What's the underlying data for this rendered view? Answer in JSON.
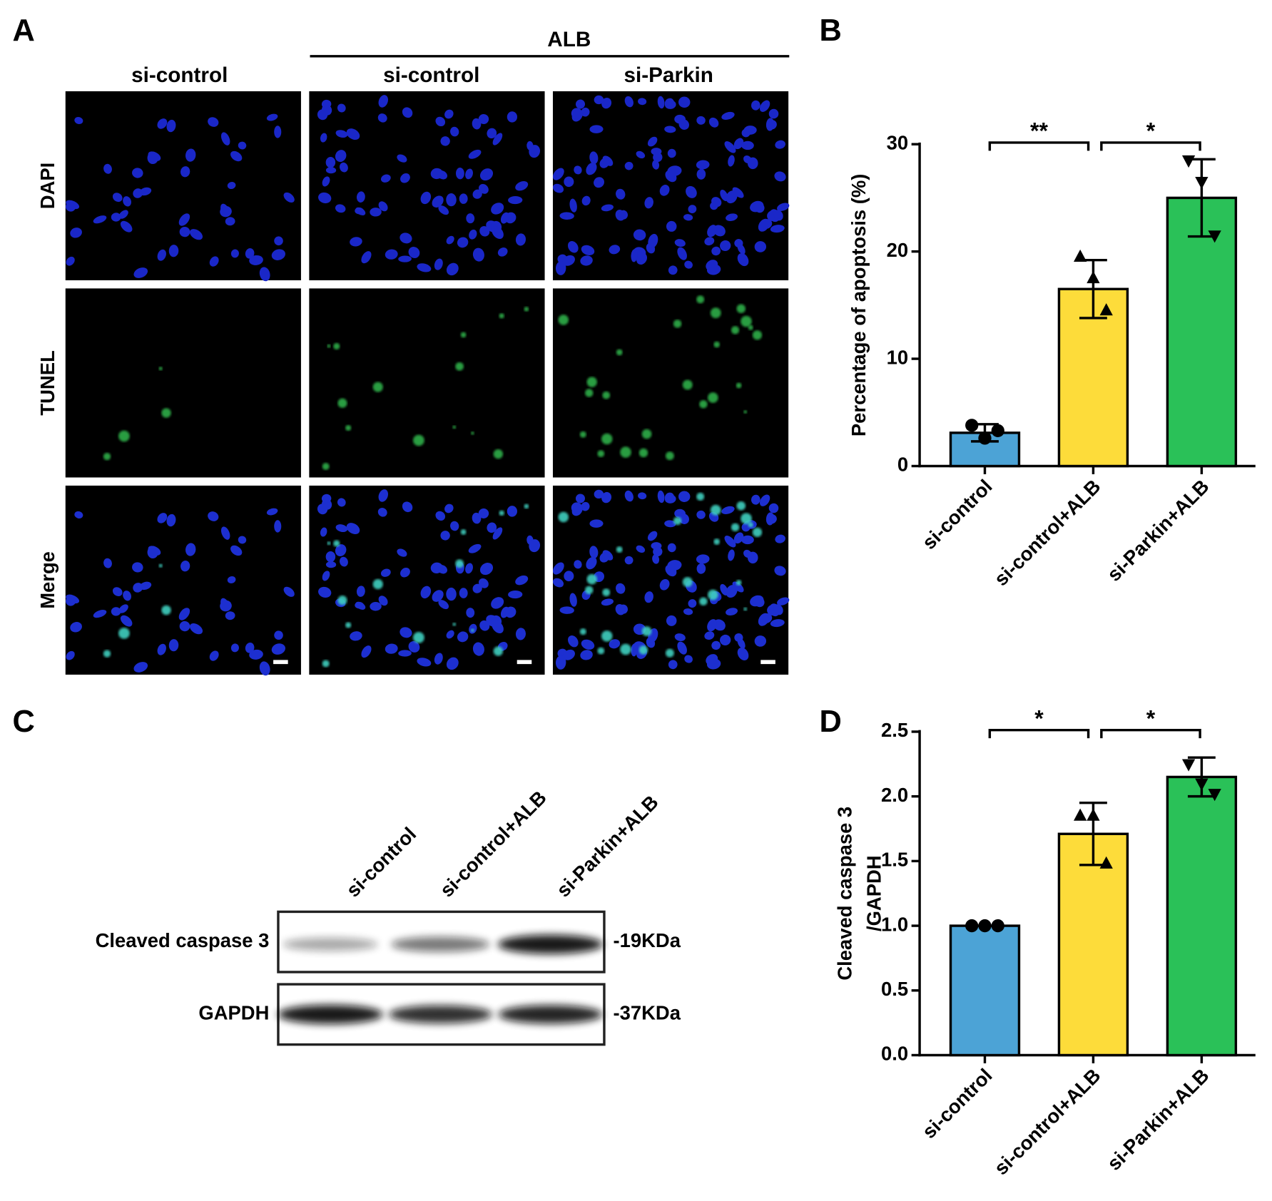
{
  "panel_labels": [
    "A",
    "B",
    "C",
    "D"
  ],
  "panel_a": {
    "group_label": "ALB",
    "columns": [
      "si-control",
      "si-control",
      "si-Parkin"
    ],
    "rows": [
      "DAPI",
      "TUNEL",
      "Merge"
    ]
  },
  "panel_c": {
    "lanes": [
      "si-control",
      "si-control+ALB",
      "si-Parkin+ALB"
    ],
    "bands": [
      {
        "name": "Cleaved caspase 3",
        "size": "-19KDa"
      },
      {
        "name": "GAPDH",
        "size": "-37KDa"
      }
    ]
  },
  "chart_data": [
    {
      "type": "bar",
      "ylabel": [
        "Percentage of apoptosis (%)"
      ],
      "categories": [
        "si-control",
        "si-control+ALB",
        "si-Parkin+ALB"
      ],
      "values": [
        3.1,
        16.5,
        25
      ],
      "errors": [
        0.8,
        2.7,
        3.6
      ],
      "colors": [
        "#4ca3d6",
        "#fddc3a",
        "#2ac158"
      ],
      "markers": [
        "circle",
        "triangle",
        "triangle-down"
      ],
      "points": [
        [
          3.8,
          2.6,
          3.3
        ],
        [
          19.5,
          17.5,
          14.5
        ],
        [
          28.5,
          26.5,
          21.5
        ]
      ],
      "ylim": [
        0,
        30
      ],
      "yticks": [
        0,
        10,
        20,
        30
      ],
      "annotations": [
        {
          "text": "**",
          "between": [
            "si-control",
            "si-control+ALB"
          ]
        },
        {
          "text": "*",
          "between": [
            "si-control+ALB",
            "si-Parkin+ALB"
          ]
        }
      ]
    },
    {
      "type": "bar",
      "ylabel": [
        "Cleaved caspase 3",
        "/GAPDH"
      ],
      "categories": [
        "si-control",
        "si-control+ALB",
        "si-Parkin+ALB"
      ],
      "values": [
        1.0,
        1.71,
        2.15
      ],
      "errors": [
        0,
        0.24,
        0.15
      ],
      "colors": [
        "#4ca3d6",
        "#fddc3a",
        "#2ac158"
      ],
      "markers": [
        "circle",
        "triangle",
        "triangle-down"
      ],
      "points": [
        [
          1,
          1,
          1
        ],
        [
          1.85,
          1.85,
          1.48
        ],
        [
          2.25,
          2.1,
          2.02
        ]
      ],
      "ylim": [
        0,
        2.5
      ],
      "yticks": [
        {
          "value": 0,
          "label": "0.0"
        },
        0.5,
        {
          "value": 1,
          "label": "1.0"
        },
        1.5,
        {
          "value": 2,
          "label": "2.0"
        },
        2.5
      ],
      "annotations": [
        {
          "text": "*",
          "between": [
            "si-control",
            "si-control+ALB"
          ]
        },
        {
          "text": "*",
          "between": [
            "si-control+ALB",
            "si-Parkin+ALB"
          ]
        }
      ]
    }
  ]
}
